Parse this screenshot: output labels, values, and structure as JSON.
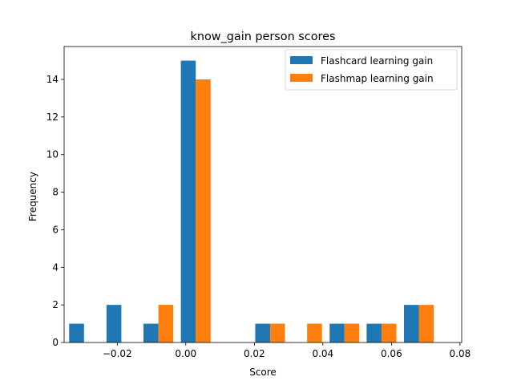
{
  "chart_data": {
    "type": "bar",
    "title": "know_gain person scores",
    "xlabel": "Score",
    "ylabel": "Frequency",
    "xlim": [
      -0.0355,
      0.0805
    ],
    "ylim": [
      0,
      15.75
    ],
    "xticks": [
      -0.02,
      0.0,
      0.02,
      0.04,
      0.06,
      0.08
    ],
    "xtick_labels": [
      "−0.02",
      "0.00",
      "0.02",
      "0.04",
      "0.06",
      "0.08"
    ],
    "yticks": [
      0,
      2,
      4,
      6,
      8,
      10,
      12,
      14
    ],
    "ytick_labels": [
      "0",
      "2",
      "4",
      "6",
      "8",
      "10",
      "12",
      "14"
    ],
    "bin_centers": [
      -0.0297,
      -0.0188,
      -0.008,
      0.0029,
      0.0137,
      0.0246,
      0.0354,
      0.0463,
      0.0571,
      0.068
    ],
    "bar_width": 0.00434,
    "grid": false,
    "legend_position": "top-right",
    "series": [
      {
        "name": "Flashcard learning gain",
        "color": "#1f77b4",
        "values": [
          1,
          2,
          1,
          15,
          0,
          1,
          0,
          1,
          1,
          2
        ]
      },
      {
        "name": "Flashmap learning gain",
        "color": "#ff7f0e",
        "values": [
          0,
          0,
          2,
          14,
          0,
          1,
          1,
          1,
          1,
          2
        ]
      }
    ]
  }
}
